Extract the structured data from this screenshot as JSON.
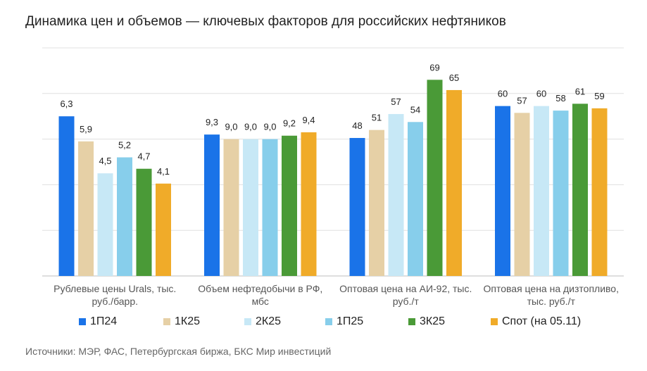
{
  "chart_data": {
    "type": "bar",
    "title": "Динамика цен и объемов — ключевых факторов для российских нефтяников",
    "categories": [
      [
        "Рублевые цены Urals, тыс.",
        "руб./барр."
      ],
      [
        "Объем нефтедобычи в РФ,",
        "мбс"
      ],
      [
        "Оптовая цена на АИ-92, тыс.",
        "руб./т"
      ],
      [
        "Оптовая цена на дизтопливо,",
        "тыс. руб./т"
      ]
    ],
    "series": [
      {
        "name": "1П24",
        "color": "#1a73e8",
        "labels": [
          "6,3",
          "9,3",
          "48",
          "60"
        ],
        "values": [
          0.7,
          0.62,
          0.605,
          0.745
        ]
      },
      {
        "name": "1К25",
        "color": "#e6d0a6",
        "labels": [
          "5,9",
          "9,0",
          "51",
          "57"
        ],
        "values": [
          0.59,
          0.6,
          0.64,
          0.715
        ]
      },
      {
        "name": "2К25",
        "color": "#c7e8f6",
        "labels": [
          "4,5",
          "9,0",
          "57",
          "60"
        ],
        "values": [
          0.45,
          0.6,
          0.71,
          0.745
        ]
      },
      {
        "name": "1П25",
        "color": "#87ceeb",
        "labels": [
          "5,2",
          "9,0",
          "54",
          "58"
        ],
        "values": [
          0.52,
          0.6,
          0.675,
          0.725
        ]
      },
      {
        "name": "3К25",
        "color": "#4a9a37",
        "labels": [
          "4,7",
          "9,2",
          "69",
          "61"
        ],
        "values": [
          0.47,
          0.615,
          0.86,
          0.755
        ]
      },
      {
        "name": "Спот (на 05.11)",
        "color": "#f0ab29",
        "labels": [
          "4,1",
          "9,4",
          "65",
          "59"
        ],
        "values": [
          0.405,
          0.63,
          0.815,
          0.735
        ]
      }
    ],
    "ylim": [
      0,
      1
    ],
    "gridlines": 5,
    "legend_position": "bottom",
    "grid": true
  },
  "source": "Источники: МЭР, ФАС, Петербургская биржа, БКС Мир инвестиций"
}
